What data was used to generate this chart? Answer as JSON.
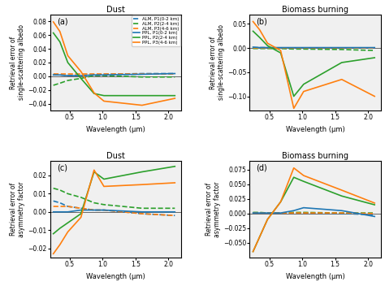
{
  "wavelengths": [
    0.25,
    0.35,
    0.47,
    0.67,
    0.87,
    1.02,
    1.6,
    2.1
  ],
  "colors": {
    "blue": "#1f77b4",
    "green": "#2ca02c",
    "orange": "#ff7f0e"
  },
  "panel_a": {
    "title": "Dust",
    "label": "(a)",
    "ylabel": "Retrieval error of\nsingle-scattering albedo",
    "xlabel": "Wavelength (μm)",
    "xlim": [
      0.2,
      2.2
    ],
    "ylim": [
      -0.05,
      0.09
    ],
    "yticks": [
      -0.04,
      -0.02,
      0.0,
      0.02,
      0.04,
      0.06,
      0.08
    ],
    "ALM_P1": [
      0.003,
      0.002,
      0.001,
      0.001,
      0.002,
      0.003,
      0.004,
      0.004
    ],
    "ALM_P2": [
      -0.013,
      -0.01,
      -0.006,
      -0.003,
      0.001,
      0.001,
      -0.001,
      -0.001
    ],
    "ALM_P3": [
      0.003,
      0.003,
      0.003,
      0.003,
      0.003,
      0.003,
      0.003,
      0.003
    ],
    "PPL_P1": [
      0.002,
      0.002,
      0.001,
      0.001,
      0.002,
      0.002,
      0.003,
      0.004
    ],
    "PPL_P2": [
      0.063,
      0.05,
      0.02,
      -0.003,
      -0.025,
      -0.028,
      -0.028,
      -0.028
    ],
    "PPL_P3": [
      0.079,
      0.065,
      0.03,
      0.007,
      -0.024,
      -0.036,
      -0.042,
      -0.032
    ]
  },
  "panel_b": {
    "title": "Biomass burning",
    "label": "(b)",
    "ylabel": "Retrieval error of\nsingle-scattering albedo",
    "xlabel": "Wavelength (μm)",
    "xlim": [
      0.2,
      2.2
    ],
    "ylim": [
      -0.13,
      0.07
    ],
    "yticks": [
      -0.1,
      -0.05,
      0.0,
      0.05
    ],
    "ALM_P1": [
      0.001,
      0.001,
      0.001,
      0.0,
      0.0,
      0.0,
      0.0,
      0.0
    ],
    "ALM_P2": [
      -0.001,
      -0.001,
      -0.001,
      -0.001,
      -0.002,
      -0.002,
      -0.003,
      -0.005
    ],
    "ALM_P3": [
      0.001,
      0.001,
      0.001,
      0.001,
      0.001,
      0.001,
      0.001,
      0.001
    ],
    "PPL_P1": [
      0.002,
      0.001,
      0.001,
      0.001,
      0.001,
      0.001,
      0.001,
      0.001
    ],
    "PPL_P2": [
      0.035,
      0.022,
      0.005,
      -0.01,
      -0.1,
      -0.075,
      -0.03,
      -0.02
    ],
    "PPL_P3": [
      0.055,
      0.038,
      0.01,
      -0.005,
      -0.125,
      -0.09,
      -0.065,
      -0.1
    ]
  },
  "panel_c": {
    "title": "Dust",
    "label": "(c)",
    "ylabel": "Retrieval error of\nasymmetry factor",
    "xlabel": "Wavelength (μm)",
    "xlim": [
      0.2,
      2.2
    ],
    "ylim": [
      -0.025,
      0.028
    ],
    "yticks": [
      -0.02,
      -0.01,
      0.0,
      0.01,
      0.02
    ],
    "ALM_P1": [
      0.006,
      0.005,
      0.003,
      0.002,
      0.001,
      0.001,
      -0.001,
      -0.002
    ],
    "ALM_P2": [
      0.013,
      0.012,
      0.01,
      0.008,
      0.005,
      0.004,
      0.002,
      0.002
    ],
    "ALM_P3": [
      0.003,
      0.003,
      0.003,
      0.002,
      0.001,
      0.001,
      -0.001,
      -0.002
    ],
    "PPL_P1": [
      0.0,
      0.0,
      0.0,
      0.001,
      0.001,
      0.001,
      0.0,
      0.0
    ],
    "PPL_P2": [
      -0.012,
      -0.009,
      -0.006,
      -0.001,
      0.022,
      0.018,
      0.022,
      0.025
    ],
    "PPL_P3": [
      -0.023,
      -0.018,
      -0.011,
      -0.003,
      0.023,
      0.014,
      0.015,
      0.016
    ]
  },
  "panel_d": {
    "title": "Biomass burning",
    "label": "(d)",
    "ylabel": "Retrieval error of\nasymmetry factor",
    "xlabel": "Wavelength (μm)",
    "xlim": [
      0.2,
      2.2
    ],
    "ylim": [
      -0.075,
      0.09
    ],
    "yticks": [
      -0.05,
      -0.025,
      0.0,
      0.025,
      0.05,
      0.075
    ],
    "ALM_P1": [
      0.001,
      0.001,
      0.001,
      0.001,
      0.001,
      0.001,
      0.0,
      -0.002
    ],
    "ALM_P2": [
      0.002,
      0.002,
      0.001,
      0.001,
      0.002,
      0.002,
      0.001,
      0.001
    ],
    "ALM_P3": [
      0.001,
      0.001,
      0.001,
      0.001,
      0.001,
      0.001,
      0.001,
      0.0
    ],
    "PPL_P1": [
      0.001,
      0.001,
      0.001,
      0.001,
      0.005,
      0.01,
      0.005,
      -0.005
    ],
    "PPL_P2": [
      -0.065,
      -0.04,
      -0.01,
      0.02,
      0.062,
      0.055,
      0.03,
      0.015
    ],
    "PPL_P3": [
      -0.065,
      -0.04,
      -0.01,
      0.02,
      0.078,
      0.065,
      0.04,
      0.018
    ]
  },
  "legend": {
    "ALM_P1": "ALM, P1(0-2 km)",
    "ALM_P2": "ALM, P2(2-4 km)",
    "ALM_P3": "ALM, P3(4-6 km)",
    "PPL_P1": "PPL, P1(0-2 km)",
    "PPL_P2": "PPL, P2(2-4 km)",
    "PPL_P3": "PPL, P3(4-6 km)"
  },
  "bg_color": "#f0f0f0"
}
